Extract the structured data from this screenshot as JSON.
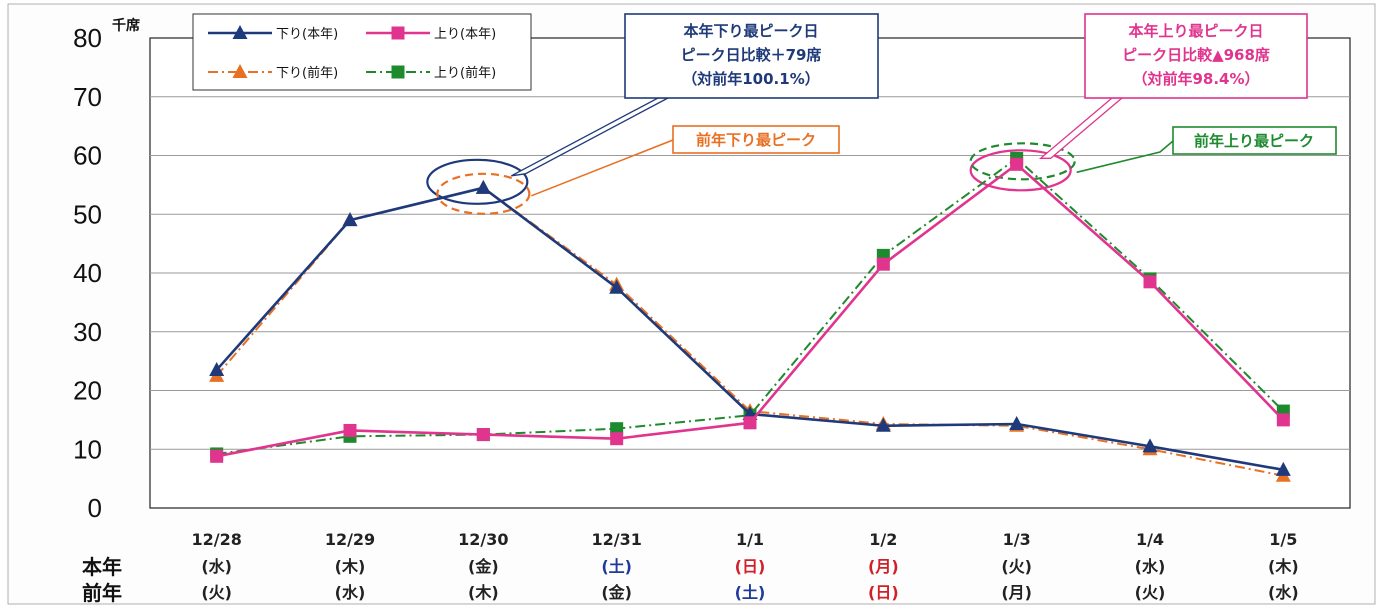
{
  "colors": {
    "down_current": "#1f3a7a",
    "up_current": "#e0348e",
    "down_previous": "#e87024",
    "up_previous": "#1e8a2e",
    "weekend_blue": "#1f3a9a",
    "holiday_red": "#d0202a"
  },
  "row_labels": {
    "current": "本年",
    "previous": "前年"
  },
  "legend": {
    "down_current": "下り(本年)",
    "up_current": "上り(本年)",
    "down_previous": "下り(前年)",
    "up_previous": "上り(前年)"
  },
  "annotations": {
    "current_down_peak": [
      "本年下り最ピーク日",
      "ピーク日比較＋79席",
      "（対前年100.1%）"
    ],
    "previous_down_peak": "前年下り最ピーク",
    "current_up_peak": [
      "本年上り最ピーク日",
      "ピーク日比較▲968席",
      "（対前年98.4%）"
    ],
    "previous_up_peak": "前年上り最ピーク"
  },
  "day_labels": {
    "current": [
      {
        "text": "(水)",
        "color": "default"
      },
      {
        "text": "(木)",
        "color": "default"
      },
      {
        "text": "(金)",
        "color": "default"
      },
      {
        "text": "(土)",
        "color": "blue"
      },
      {
        "text": "(日)",
        "color": "red"
      },
      {
        "text": "(月)",
        "color": "red"
      },
      {
        "text": "(火)",
        "color": "default"
      },
      {
        "text": "(水)",
        "color": "default"
      },
      {
        "text": "(木)",
        "color": "default"
      }
    ],
    "previous": [
      {
        "text": "(火)",
        "color": "default"
      },
      {
        "text": "(水)",
        "color": "default"
      },
      {
        "text": "(木)",
        "color": "default"
      },
      {
        "text": "(金)",
        "color": "default"
      },
      {
        "text": "(土)",
        "color": "blue"
      },
      {
        "text": "(日)",
        "color": "red"
      },
      {
        "text": "(月)",
        "color": "default"
      },
      {
        "text": "(火)",
        "color": "default"
      },
      {
        "text": "(水)",
        "color": "default"
      }
    ]
  },
  "chart_data": {
    "type": "line",
    "title": "",
    "xlabel": "",
    "ylabel": "",
    "y_unit": "千席",
    "ylim": [
      0,
      80
    ],
    "y_ticks": [
      0,
      10,
      20,
      30,
      40,
      50,
      60,
      70,
      80
    ],
    "grid": true,
    "legend_position": "top-left",
    "categories": [
      "12/28",
      "12/29",
      "12/30",
      "12/31",
      "1/1",
      "1/2",
      "1/3",
      "1/4",
      "1/5"
    ],
    "series": [
      {
        "name": "下り(本年)",
        "key": "down_current",
        "marker": "triangle",
        "dash": "solid",
        "values": [
          23.5,
          49,
          54.5,
          37.5,
          16,
          14,
          14.3,
          10.5,
          6.5
        ]
      },
      {
        "name": "上り(本年)",
        "key": "up_current",
        "marker": "square",
        "dash": "solid",
        "values": [
          8.8,
          13.2,
          12.5,
          11.8,
          14.5,
          41.5,
          58.5,
          38.5,
          15
        ]
      },
      {
        "name": "下り(前年)",
        "key": "down_previous",
        "marker": "triangle",
        "dash": "dashdot",
        "values": [
          22.5,
          49,
          54.5,
          38,
          16.5,
          14.3,
          14,
          10,
          5.5
        ]
      },
      {
        "name": "上り(前年)",
        "key": "up_previous",
        "marker": "square",
        "dash": "dashdot",
        "values": [
          9.2,
          12.2,
          12.5,
          13.5,
          15.8,
          43,
          59.5,
          39,
          16.5
        ]
      }
    ]
  }
}
